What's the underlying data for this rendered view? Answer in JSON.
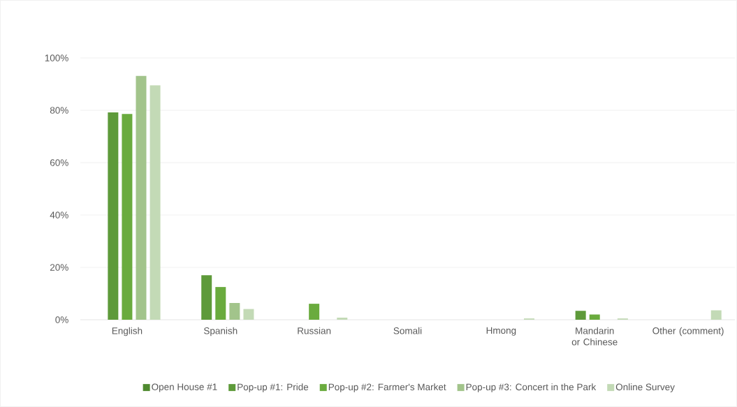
{
  "chart_data": {
    "type": "bar",
    "categories": [
      "English",
      "Spanish",
      "Russian",
      "Somali",
      "Hmong",
      "Mandarin or Chinese",
      "Other (comment)"
    ],
    "series": [
      {
        "name": "Open House #1",
        "color": "#4f8a2f",
        "values": [
          null,
          null,
          null,
          null,
          null,
          null,
          null
        ]
      },
      {
        "name": "Pop-up #1: Pride",
        "color": "#5e9a3a",
        "values": [
          79.2,
          17.0,
          null,
          null,
          null,
          3.4,
          null
        ]
      },
      {
        "name": "Pop-up #2: Farmer's Market",
        "color": "#6aab3e",
        "values": [
          78.6,
          12.5,
          6.1,
          null,
          null,
          2.0,
          null
        ]
      },
      {
        "name": "Pop-up #3: Concert in the Park",
        "color": "#a2c48b",
        "values": [
          93.1,
          6.4,
          null,
          null,
          null,
          null,
          null
        ]
      },
      {
        "name": "Online Survey",
        "color": "#c3dab6",
        "values": [
          89.5,
          4.1,
          0.8,
          null,
          0.5,
          0.5,
          3.6
        ]
      }
    ],
    "ylim": [
      0,
      100
    ],
    "yticks": [
      {
        "value": 0,
        "label": "0%"
      },
      {
        "value": 20,
        "label": "20%"
      },
      {
        "value": 40,
        "label": "40%"
      },
      {
        "value": 60,
        "label": "60%"
      },
      {
        "value": 80,
        "label": "80%"
      },
      {
        "value": 100,
        "label": "100%"
      }
    ],
    "grid": "y",
    "legend": "bottom"
  }
}
